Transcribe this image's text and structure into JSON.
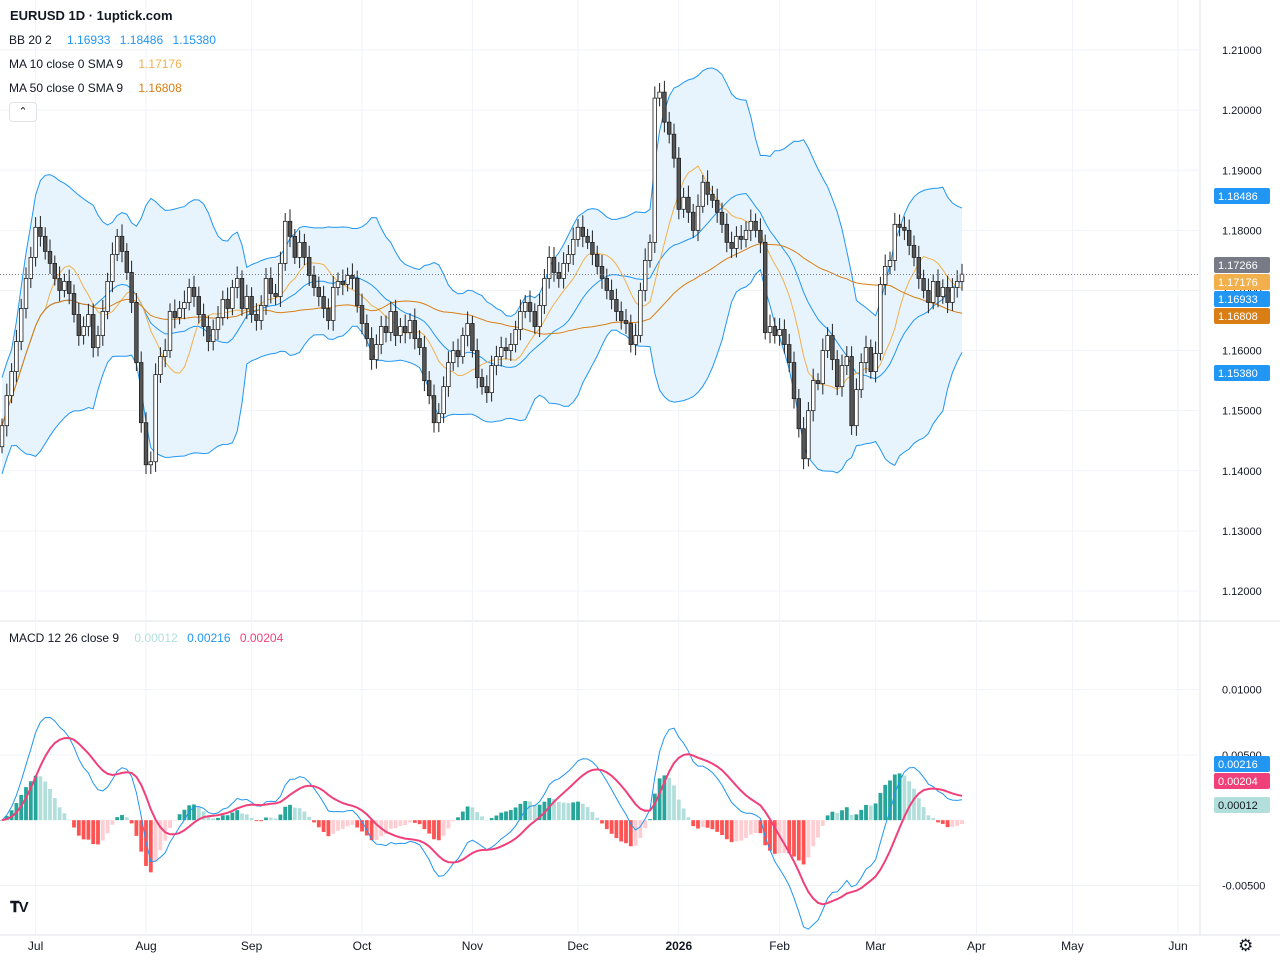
{
  "header": {
    "title": "EURUSD 1D · 1uptick.com"
  },
  "legends": {
    "bb": {
      "label": "BB 20 2",
      "basis": "1.16933",
      "upper": "1.18486",
      "lower": "1.15380"
    },
    "ma10": {
      "label": "MA 10 close 0 SMA 9",
      "value": "1.17176"
    },
    "ma50": {
      "label": "MA 50 close 0 SMA 9",
      "value": "1.16808"
    },
    "macd": {
      "label": "MACD 12 26 close 9",
      "hist": "0.00012",
      "macd": "0.00216",
      "signal": "0.00204"
    }
  },
  "controls": {
    "collapse_icon": "chevron-up-icon",
    "settings_icon": "gear-icon",
    "logo": "tv-logo"
  },
  "colors": {
    "bb_line": "#2196f3",
    "bb_fill": "#e3f2fd",
    "ma10": "#f2b04c",
    "ma50": "#d97e14",
    "candle_fill": "#555555",
    "macd_line": "#2196f3",
    "signal_line": "#f0407a",
    "hist_pos_strong": "#26a69a",
    "hist_pos_weak": "#b2dfdb",
    "hist_neg_strong": "#ff5252",
    "hist_neg_weak": "#ffcdd2",
    "last_price_tag": "#787b86"
  },
  "chart_data": [
    {
      "type": "candlestick",
      "symbol": "EURUSD",
      "interval": "1D",
      "y_ticks": [
        "1.21000",
        "1.20000",
        "1.19000",
        "1.18000",
        "1.17000",
        "1.16000",
        "1.15000",
        "1.14000",
        "1.13000",
        "1.12000"
      ],
      "y_range": [
        1.116,
        1.215
      ],
      "x_labels": [
        "Jul",
        "Aug",
        "Sep",
        "Oct",
        "Nov",
        "Dec",
        "2026",
        "Feb",
        "Mar",
        "Apr",
        "May",
        "Jun"
      ],
      "x_label_bar_index": [
        7,
        30,
        52,
        75,
        98,
        120,
        141,
        162,
        182,
        203,
        223,
        245
      ],
      "price_tags": [
        {
          "value": "1.18486",
          "price": 1.18486,
          "color": "#2196f3"
        },
        {
          "value": "1.17266",
          "price": 1.17266,
          "color": "#787b86"
        },
        {
          "value": "1.17176",
          "price": 1.17176,
          "color": "#f2b04c"
        },
        {
          "value": "1.16933",
          "price": 1.16933,
          "color": "#2196f3"
        },
        {
          "value": "1.16808",
          "price": 1.16808,
          "color": "#d97e14"
        },
        {
          "value": "1.15380",
          "price": 1.1538,
          "color": "#2196f3"
        }
      ],
      "last_price": 1.17266,
      "close": [
        1.1475,
        1.1525,
        1.1565,
        1.1615,
        1.167,
        1.172,
        1.1755,
        1.1805,
        1.179,
        1.1765,
        1.1745,
        1.172,
        1.17,
        1.1715,
        1.1695,
        1.166,
        1.1625,
        1.164,
        1.166,
        1.1605,
        1.1625,
        1.1665,
        1.1715,
        1.176,
        1.179,
        1.1765,
        1.173,
        1.168,
        1.158,
        1.148,
        1.141,
        1.1415,
        1.156,
        1.159,
        1.16,
        1.1665,
        1.1655,
        1.167,
        1.168,
        1.1705,
        1.169,
        1.166,
        1.164,
        1.1615,
        1.1635,
        1.1655,
        1.1685,
        1.167,
        1.1705,
        1.172,
        1.167,
        1.169,
        1.166,
        1.165,
        1.1675,
        1.172,
        1.1695,
        1.169,
        1.1745,
        1.1815,
        1.179,
        1.1755,
        1.178,
        1.1755,
        1.1725,
        1.1705,
        1.169,
        1.167,
        1.165,
        1.1705,
        1.1715,
        1.171,
        1.1725,
        1.172,
        1.1675,
        1.1645,
        1.162,
        1.1585,
        1.161,
        1.164,
        1.163,
        1.1665,
        1.1625,
        1.164,
        1.163,
        1.165,
        1.162,
        1.1605,
        1.155,
        1.1525,
        1.148,
        1.1495,
        1.154,
        1.158,
        1.16,
        1.159,
        1.1625,
        1.1645,
        1.16,
        1.1555,
        1.154,
        1.153,
        1.1575,
        1.159,
        1.1605,
        1.16,
        1.161,
        1.1635,
        1.1665,
        1.168,
        1.1665,
        1.164,
        1.1675,
        1.172,
        1.1755,
        1.173,
        1.172,
        1.1745,
        1.176,
        1.1785,
        1.1805,
        1.179,
        1.178,
        1.176,
        1.174,
        1.172,
        1.17,
        1.1685,
        1.1665,
        1.165,
        1.1645,
        1.161,
        1.1625,
        1.17,
        1.175,
        1.178,
        1.202,
        1.203,
        1.198,
        1.196,
        1.192,
        1.1835,
        1.1855,
        1.183,
        1.18,
        1.184,
        1.188,
        1.186,
        1.185,
        1.183,
        1.181,
        1.178,
        1.177,
        1.179,
        1.1785,
        1.18,
        1.1815,
        1.18,
        1.178,
        1.163,
        1.164,
        1.1625,
        1.1635,
        1.161,
        1.158,
        1.152,
        1.147,
        1.142,
        1.15,
        1.155,
        1.1545,
        1.16,
        1.1625,
        1.1585,
        1.154,
        1.1575,
        1.159,
        1.1475,
        1.1535,
        1.158,
        1.1605,
        1.1565,
        1.1595,
        1.171,
        1.174,
        1.175,
        1.181,
        1.1805,
        1.18,
        1.1775,
        1.1755,
        1.172,
        1.17,
        1.168,
        1.1715,
        1.169,
        1.1705,
        1.168,
        1.1705,
        1.1715,
        1.1727
      ],
      "open": [
        1.144,
        1.1475,
        1.1525,
        1.1565,
        1.1615,
        1.167,
        1.172,
        1.1755,
        1.1805,
        1.179,
        1.1765,
        1.1745,
        1.172,
        1.17,
        1.1715,
        1.1695,
        1.166,
        1.1625,
        1.164,
        1.166,
        1.1605,
        1.1625,
        1.1665,
        1.1715,
        1.176,
        1.179,
        1.1765,
        1.173,
        1.168,
        1.158,
        1.148,
        1.141,
        1.1415,
        1.156,
        1.159,
        1.16,
        1.1665,
        1.1655,
        1.167,
        1.168,
        1.1705,
        1.169,
        1.166,
        1.164,
        1.1615,
        1.1635,
        1.1655,
        1.1685,
        1.167,
        1.1705,
        1.172,
        1.167,
        1.169,
        1.166,
        1.165,
        1.1675,
        1.172,
        1.1695,
        1.169,
        1.1745,
        1.1815,
        1.179,
        1.1755,
        1.178,
        1.1755,
        1.1725,
        1.1705,
        1.169,
        1.167,
        1.165,
        1.1705,
        1.1715,
        1.171,
        1.1725,
        1.172,
        1.1675,
        1.1645,
        1.162,
        1.1585,
        1.161,
        1.164,
        1.163,
        1.1665,
        1.1625,
        1.164,
        1.163,
        1.165,
        1.162,
        1.1605,
        1.155,
        1.1525,
        1.148,
        1.1495,
        1.154,
        1.158,
        1.16,
        1.159,
        1.1625,
        1.1645,
        1.16,
        1.1555,
        1.154,
        1.153,
        1.1575,
        1.159,
        1.1605,
        1.16,
        1.161,
        1.1635,
        1.1665,
        1.168,
        1.1665,
        1.164,
        1.1675,
        1.172,
        1.1755,
        1.173,
        1.172,
        1.1745,
        1.176,
        1.1785,
        1.1805,
        1.179,
        1.178,
        1.176,
        1.174,
        1.172,
        1.17,
        1.1685,
        1.1665,
        1.165,
        1.1645,
        1.161,
        1.1625,
        1.17,
        1.175,
        1.178,
        1.202,
        1.203,
        1.198,
        1.196,
        1.192,
        1.1835,
        1.1855,
        1.183,
        1.18,
        1.184,
        1.188,
        1.186,
        1.185,
        1.183,
        1.181,
        1.178,
        1.177,
        1.179,
        1.1785,
        1.18,
        1.1815,
        1.18,
        1.178,
        1.163,
        1.164,
        1.1625,
        1.1635,
        1.161,
        1.158,
        1.152,
        1.147,
        1.142,
        1.15,
        1.155,
        1.1545,
        1.16,
        1.1625,
        1.1585,
        1.154,
        1.1575,
        1.159,
        1.1475,
        1.1535,
        1.158,
        1.1605,
        1.1565,
        1.1595,
        1.171,
        1.174,
        1.175,
        1.181,
        1.1805,
        1.18,
        1.1775,
        1.1755,
        1.172,
        1.17,
        1.168,
        1.1715,
        1.169,
        1.1705,
        1.168,
        1.1705,
        1.1715
      ]
    },
    {
      "type": "macd",
      "y_ticks": [
        "0.01000",
        "0.00500",
        "-0.00500"
      ],
      "y_range": [
        -0.0078,
        0.0138
      ],
      "price_tags": [
        {
          "value": "0.00216",
          "level": 0.00216,
          "color": "#2196f3"
        },
        {
          "value": "0.00204",
          "level": 0.00204,
          "color": "#f0407a"
        },
        {
          "value": "0.00012",
          "level": 0.00012,
          "color": "#b2dfdb"
        }
      ]
    }
  ]
}
